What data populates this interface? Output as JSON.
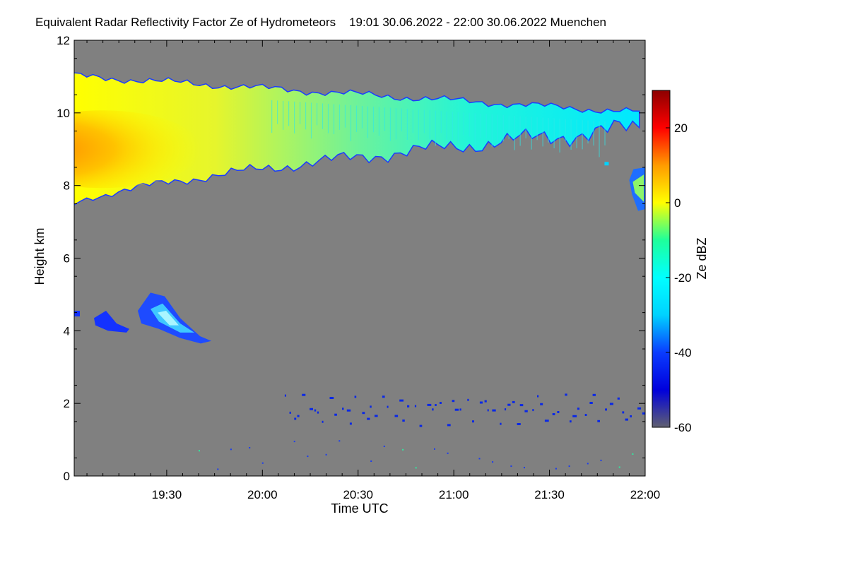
{
  "chart_data": {
    "type": "heatmap",
    "title": "Equivalent Radar Reflectivity Factor Ze of Hydrometeors",
    "time_range": "19:01 30.06.2022 - 22:00 30.06.2022",
    "location": "Muenchen",
    "xlabel": "Time UTC",
    "ylabel": "Height km",
    "x_start": "19:01",
    "x_end": "22:00",
    "xlim": [
      19.0167,
      22.0
    ],
    "x_ticks": [
      "19:30",
      "20:00",
      "20:30",
      "21:00",
      "21:30",
      "22:00"
    ],
    "ylim": [
      0,
      12
    ],
    "y_ticks": [
      "0",
      "2",
      "4",
      "6",
      "8",
      "10",
      "12"
    ],
    "colorbar": {
      "label": "Ze dBZ",
      "range": [
        -60,
        30
      ],
      "ticks": [
        "20",
        "0",
        "-20",
        "-40",
        "-60"
      ],
      "colormap": [
        "#606070",
        "#0000dc",
        "#0a3cff",
        "#00d2ff",
        "#00ffff",
        "#1eff9b",
        "#ffff00",
        "#ff9b00",
        "#ff0000",
        "#8c0000"
      ]
    },
    "background_color": "#808080",
    "features": [
      {
        "name": "upper cloud layer",
        "time_start": "19:01",
        "time_end": "21:58",
        "base_km_start": 7.5,
        "base_km_end": 9.6,
        "top_km_start": 11.0,
        "top_km_end": 10.0,
        "max_ze_dbz": 5
      },
      {
        "name": "mid-level cloud patch",
        "time_start": "19:01",
        "time_end": "19:44",
        "base_km": 3.7,
        "top_km": 5.1,
        "max_ze_dbz": -25
      },
      {
        "name": "late cloud fragment",
        "time_start": "21:55",
        "time_end": "22:00",
        "base_km": 7.3,
        "top_km": 8.5,
        "max_ze_dbz": -8
      },
      {
        "name": "low-level scattered echoes",
        "time_start": "20:07",
        "time_end": "22:00",
        "base_km": 1.4,
        "top_km": 2.3,
        "max_ze_dbz": -45
      }
    ]
  }
}
